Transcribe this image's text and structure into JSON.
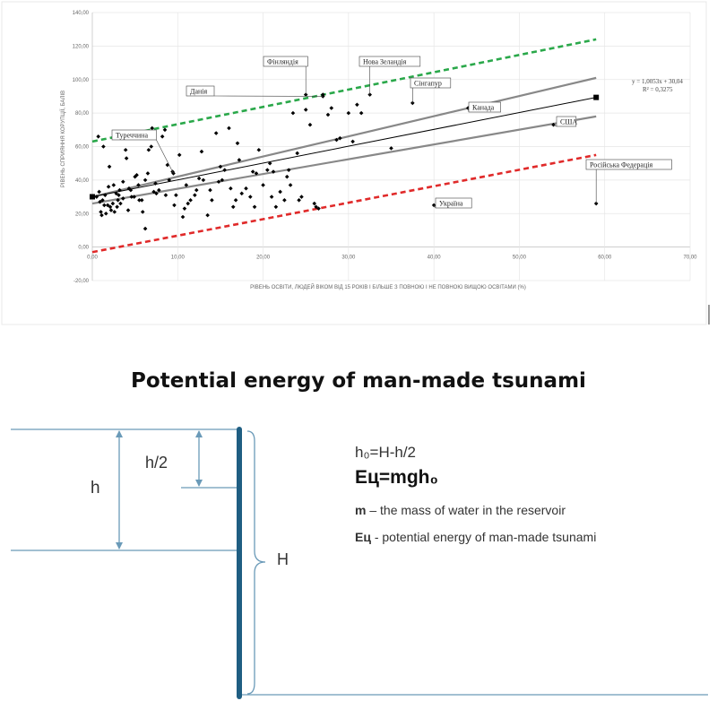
{
  "chart_data": {
    "type": "scatter",
    "title": "",
    "xlabel": "РІВЕНЬ ОСВІТИ, ЛЮДЕЙ ВІКОМ ВІД 15 РОКІВ І БІЛЬШЕ З ПОВНОЮ І НЕ ПОВНОЮ ВИЩОЮ ОСВІТАМИ (%)",
    "ylabel": "РІВЕНЬ СПРИЯННЯ КОРУПЦІЇ, БАЛІВ",
    "xlim": [
      0,
      70
    ],
    "ylim": [
      -20,
      140
    ],
    "x_ticks": [
      "0,00",
      "10,00",
      "20,00",
      "30,00",
      "40,00",
      "50,00",
      "60,00",
      "70,00"
    ],
    "y_ticks": [
      "-20,00",
      "0,00",
      "20,00",
      "40,00",
      "60,00",
      "80,00",
      "100,00",
      "120,00",
      "140,00"
    ],
    "grid": true,
    "trend_equation": "y = 1,0053x + 30,04",
    "r_squared": "R² = 0,3275",
    "lines": {
      "trend": {
        "slope": 1.0053,
        "intercept": 30.04,
        "color": "#000000"
      },
      "upper_conf": {
        "points": [
          [
            0,
            30
          ],
          [
            59,
            101
          ]
        ],
        "color": "#888888"
      },
      "lower_conf": {
        "points": [
          [
            0,
            26
          ],
          [
            59,
            78
          ]
        ],
        "color": "#888888"
      },
      "upper_bound": {
        "points": [
          [
            0,
            63
          ],
          [
            59,
            124
          ]
        ],
        "color": "#2aa84a"
      },
      "lower_bound": {
        "points": [
          [
            0,
            -3
          ],
          [
            59,
            55
          ]
        ],
        "color": "#e02a2a"
      }
    },
    "labeled_points": [
      {
        "label": "Фінляндія",
        "x": 25.0,
        "y": 91
      },
      {
        "label": "Данія",
        "x": 27.0,
        "y": 90
      },
      {
        "label": "Нова Зеландія",
        "x": 32.5,
        "y": 91
      },
      {
        "label": "Сінгапур",
        "x": 37.5,
        "y": 86
      },
      {
        "label": "Канада",
        "x": 44.0,
        "y": 83
      },
      {
        "label": "США",
        "x": 54.0,
        "y": 73
      },
      {
        "label": "Туреччина",
        "x": 9.5,
        "y": 44
      },
      {
        "label": "Україна",
        "x": 40.0,
        "y": 25
      },
      {
        "label": "Російська Федерація",
        "x": 59.0,
        "y": 26
      }
    ],
    "series": [
      {
        "x": [
          0.5,
          0.8,
          1.0,
          1.2,
          1.5,
          1.8,
          2.0,
          2.2,
          2.5,
          2.8,
          3.0,
          3.3,
          3.6,
          4.0,
          4.3,
          4.6,
          5.0,
          5.4,
          5.8,
          6.2,
          6.6,
          7.0,
          7.4,
          7.8,
          8.2,
          8.6,
          9.0,
          9.4,
          9.8,
          10.2,
          10.6,
          11.0,
          11.5,
          12.0,
          12.5,
          13.0,
          13.5,
          14.0,
          14.5,
          15.0,
          15.5,
          16.0,
          16.5,
          17.0,
          17.5,
          18.0,
          18.5,
          19.0,
          19.5,
          20.0,
          20.5,
          21.0,
          21.5,
          22.0,
          22.5,
          23.0,
          23.5,
          24.0,
          24.5,
          25.0,
          25.5,
          26.0,
          26.5,
          27.0,
          28.0,
          29.0,
          30.0,
          30.5,
          31.0,
          31.5,
          35.0,
          4.5,
          5.5,
          6.5,
          7.5,
          8.5,
          1.6,
          2.6,
          3.6,
          1.1,
          1.4,
          1.9,
          2.4,
          3.9,
          4.9,
          5.9,
          6.9,
          10.8,
          12.8,
          13.8,
          14.8,
          16.8,
          18.8,
          20.8,
          22.8,
          24.2,
          26.2,
          27.6,
          28.6,
          0.7,
          1.3,
          2.1,
          3.1,
          11.2,
          12.2,
          15.2,
          16.2,
          17.2,
          19.2,
          21.2,
          23.2,
          9.6,
          8.8,
          7.2,
          6.2,
          5.2,
          4.2,
          3.2,
          2.9,
          0.9
        ],
        "y": [
          30,
          33,
          21,
          28,
          31,
          25,
          48,
          22,
          37,
          32,
          28,
          26,
          39,
          53,
          35,
          30,
          42,
          37,
          28,
          11,
          58,
          71,
          38,
          34,
          66,
          31,
          40,
          45,
          31,
          55,
          18,
          37,
          28,
          31,
          41,
          40,
          19,
          28,
          68,
          48,
          46,
          71,
          24,
          62,
          32,
          35,
          30,
          24,
          58,
          37,
          46,
          30,
          24,
          33,
          28,
          46,
          80,
          56,
          30,
          82,
          73,
          26,
          23,
          91,
          83,
          65,
          80,
          63,
          85,
          80,
          59,
          34,
          28,
          44,
          32,
          70,
          20,
          21,
          29,
          19,
          25,
          36,
          26,
          58,
          30,
          21,
          60,
          23,
          57,
          34,
          39,
          28,
          45,
          50,
          42,
          28,
          24,
          79,
          64,
          66,
          60,
          24,
          31,
          26,
          34,
          40,
          35,
          52,
          44,
          45,
          37,
          25,
          49,
          33,
          40,
          43,
          22,
          34,
          24,
          27
        ]
      }
    ]
  },
  "diagram": {
    "title": "Potential energy of man-made tsunami",
    "label_h": "h",
    "label_h_half": "h/2",
    "label_H": "H",
    "formula1": "h₀=H-h/2",
    "formula2": "Eц=mgh₀",
    "def_m_symbol": "m",
    "def_m_text": " – the mass of water in the reservoir",
    "def_E_symbol": "Eц",
    "def_E_text": "  - potential energy of man-made tsunami",
    "colors": {
      "wall": "#1f5e82",
      "line": "#6a9ab8"
    }
  }
}
